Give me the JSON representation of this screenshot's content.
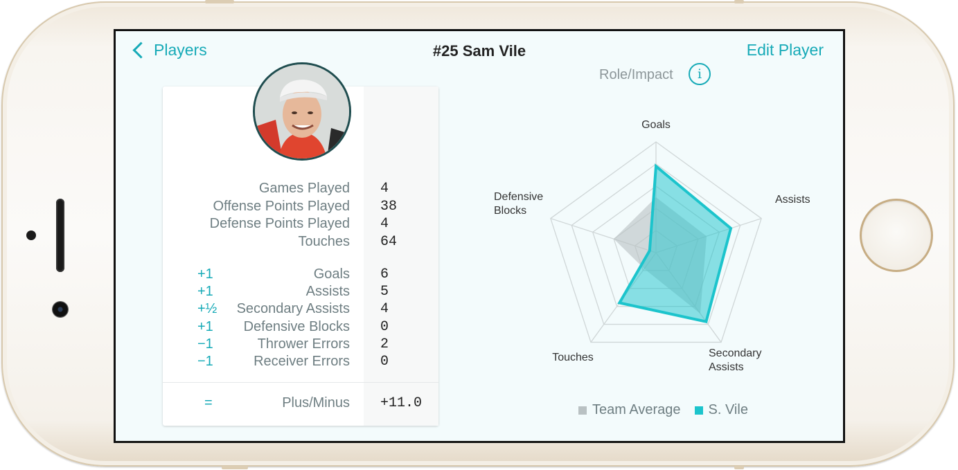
{
  "header": {
    "back_label": "Players",
    "title": "#25 Sam Vile",
    "edit_label": "Edit Player"
  },
  "section": {
    "role_label": "Role/Impact",
    "info_glyph": "i"
  },
  "stats": {
    "basic": [
      {
        "label": "Games Played",
        "value": "4"
      },
      {
        "label": "Offense Points Played",
        "value": "38"
      },
      {
        "label": "Defense Points Played",
        "value": "4"
      },
      {
        "label": "Touches",
        "value": "64"
      }
    ],
    "weighted": [
      {
        "modifier": "+1",
        "label": "Goals",
        "value": "6"
      },
      {
        "modifier": "+1",
        "label": "Assists",
        "value": "5"
      },
      {
        "modifier": "+½",
        "label": "Secondary Assists",
        "value": "4"
      },
      {
        "modifier": "+1",
        "label": "Defensive Blocks",
        "value": "0"
      },
      {
        "modifier": "−1",
        "label": "Thrower Errors",
        "value": "2"
      },
      {
        "modifier": "−1",
        "label": "Receiver Errors",
        "value": "0"
      }
    ],
    "total": {
      "modifier": "=",
      "label": "Plus/Minus",
      "value": "+11.0"
    }
  },
  "chart_data": {
    "type": "radar",
    "axes": [
      "Goals",
      "Assists",
      "Secondary Assists",
      "Touches",
      "Defensive Blocks"
    ],
    "axis_label_lines": [
      [
        "Goals"
      ],
      [
        "Assists"
      ],
      [
        "Secondary",
        "Assists"
      ],
      [
        "Touches"
      ],
      [
        "Defensive",
        "Blocks"
      ]
    ],
    "range": [
      0,
      1
    ],
    "rings": 5,
    "series": [
      {
        "name": "Team Average",
        "values": [
          0.5,
          0.48,
          0.68,
          0.18,
          0.4
        ],
        "color": "#b9c1c3"
      },
      {
        "name": "S. Vile",
        "values": [
          0.78,
          0.71,
          0.77,
          0.56,
          0.06
        ],
        "color": "#1cc4cc"
      }
    ],
    "legend_position": "bottom"
  },
  "colors": {
    "accent": "#16aab7",
    "team_average": "#b9c1c3",
    "player": "#1cc4cc"
  }
}
